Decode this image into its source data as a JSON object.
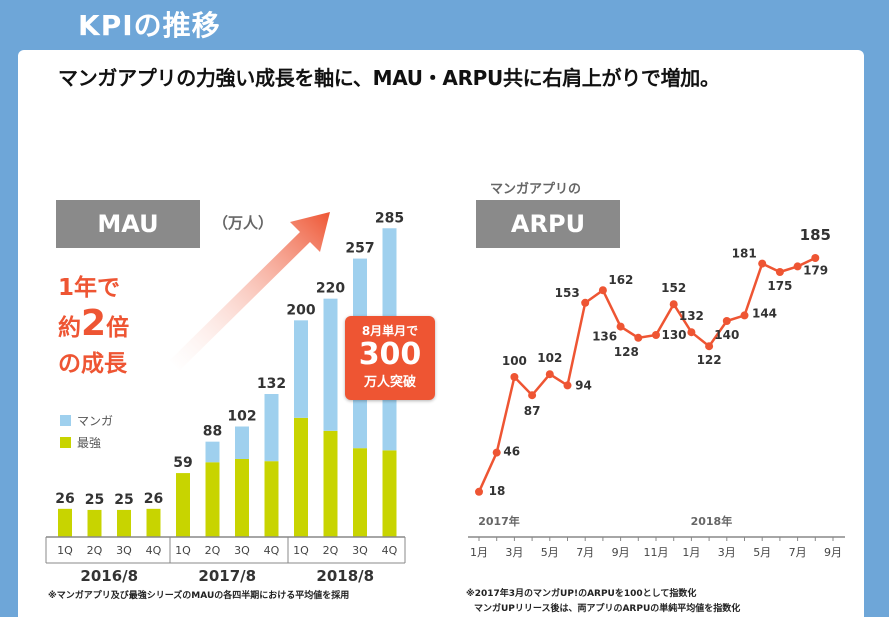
{
  "page": {
    "title": "KPIの推移",
    "headline": "マンガアプリの力強い成長を軸に、MAU・ARPU共に右肩上がりで増加。"
  },
  "colors": {
    "background": "#6ea6d8",
    "manga": "#9fd0ee",
    "saikyo": "#c8d400",
    "accent": "#ee5533",
    "label_box": "#8a8a8a"
  },
  "mau": {
    "label": "MAU",
    "unit": "（万人）",
    "growth_line1": "1年で",
    "growth_line2a": "約",
    "growth_line2b": "2",
    "growth_line2c": "倍",
    "growth_line3": "の成長",
    "callout_line1": "8月単月で",
    "callout_line2": "300",
    "callout_line3": "万人突破",
    "note": "※マンガアプリ及び最強シリーズのMAUの各四半期における平均値を採用"
  },
  "arpu": {
    "subtitle": "マンガアプリの",
    "label": "ARPU",
    "note_line1": "※2017年3月のマンガUP!のARPUを100として指数化",
    "note_line2": "マンガUPリリース後は、両アプリのARPUの単純平均値を指数化"
  },
  "chart_data": [
    {
      "type": "bar",
      "stacked": true,
      "title": "MAU",
      "ylabel": "万人",
      "categories": [
        "1Q",
        "2Q",
        "3Q",
        "4Q",
        "1Q",
        "2Q",
        "3Q",
        "4Q",
        "1Q",
        "2Q",
        "3Q",
        "4Q"
      ],
      "groups": [
        {
          "label": "2016/8",
          "count": 4
        },
        {
          "label": "2017/8",
          "count": 4
        },
        {
          "label": "2018/8",
          "count": 4
        }
      ],
      "totals": [
        26,
        25,
        25,
        26,
        59,
        88,
        102,
        132,
        200,
        220,
        257,
        285
      ],
      "series": [
        {
          "name": "最強",
          "color": "#c8d400",
          "values": [
            26,
            25,
            25,
            26,
            59,
            69,
            72,
            70,
            110,
            98,
            82,
            80
          ]
        },
        {
          "name": "マンガ",
          "color": "#9fd0ee",
          "values": [
            0,
            0,
            0,
            0,
            0,
            19,
            30,
            62,
            90,
            122,
            175,
            205
          ]
        }
      ],
      "ylim": [
        0,
        300
      ]
    },
    {
      "type": "line",
      "title": "ARPU",
      "x": [
        "2017-01",
        "2017-02",
        "2017-03",
        "2017-04",
        "2017-05",
        "2017-06",
        "2017-07",
        "2017-08",
        "2017-09",
        "2017-10",
        "2017-11",
        "2017-12",
        "2018-01",
        "2018-02",
        "2018-03",
        "2018-04",
        "2018-05",
        "2018-06",
        "2018-07",
        "2018-08"
      ],
      "values": [
        18,
        46,
        100,
        87,
        102,
        94,
        153,
        162,
        136,
        128,
        130,
        152,
        132,
        122,
        140,
        144,
        181,
        175,
        179,
        185
      ],
      "x_tick_labels": [
        "1月",
        "3月",
        "5月",
        "7月",
        "9月",
        "11月",
        "1月",
        "3月",
        "5月",
        "7月",
        "9月"
      ],
      "x_tick_positions": [
        1,
        3,
        5,
        7,
        9,
        11,
        13,
        15,
        17,
        19,
        21
      ],
      "year_labels": [
        {
          "label": "2017年",
          "at": 1
        },
        {
          "label": "2018年",
          "at": 13
        }
      ],
      "color": "#ee5533",
      "ylim": [
        0,
        200
      ]
    }
  ]
}
